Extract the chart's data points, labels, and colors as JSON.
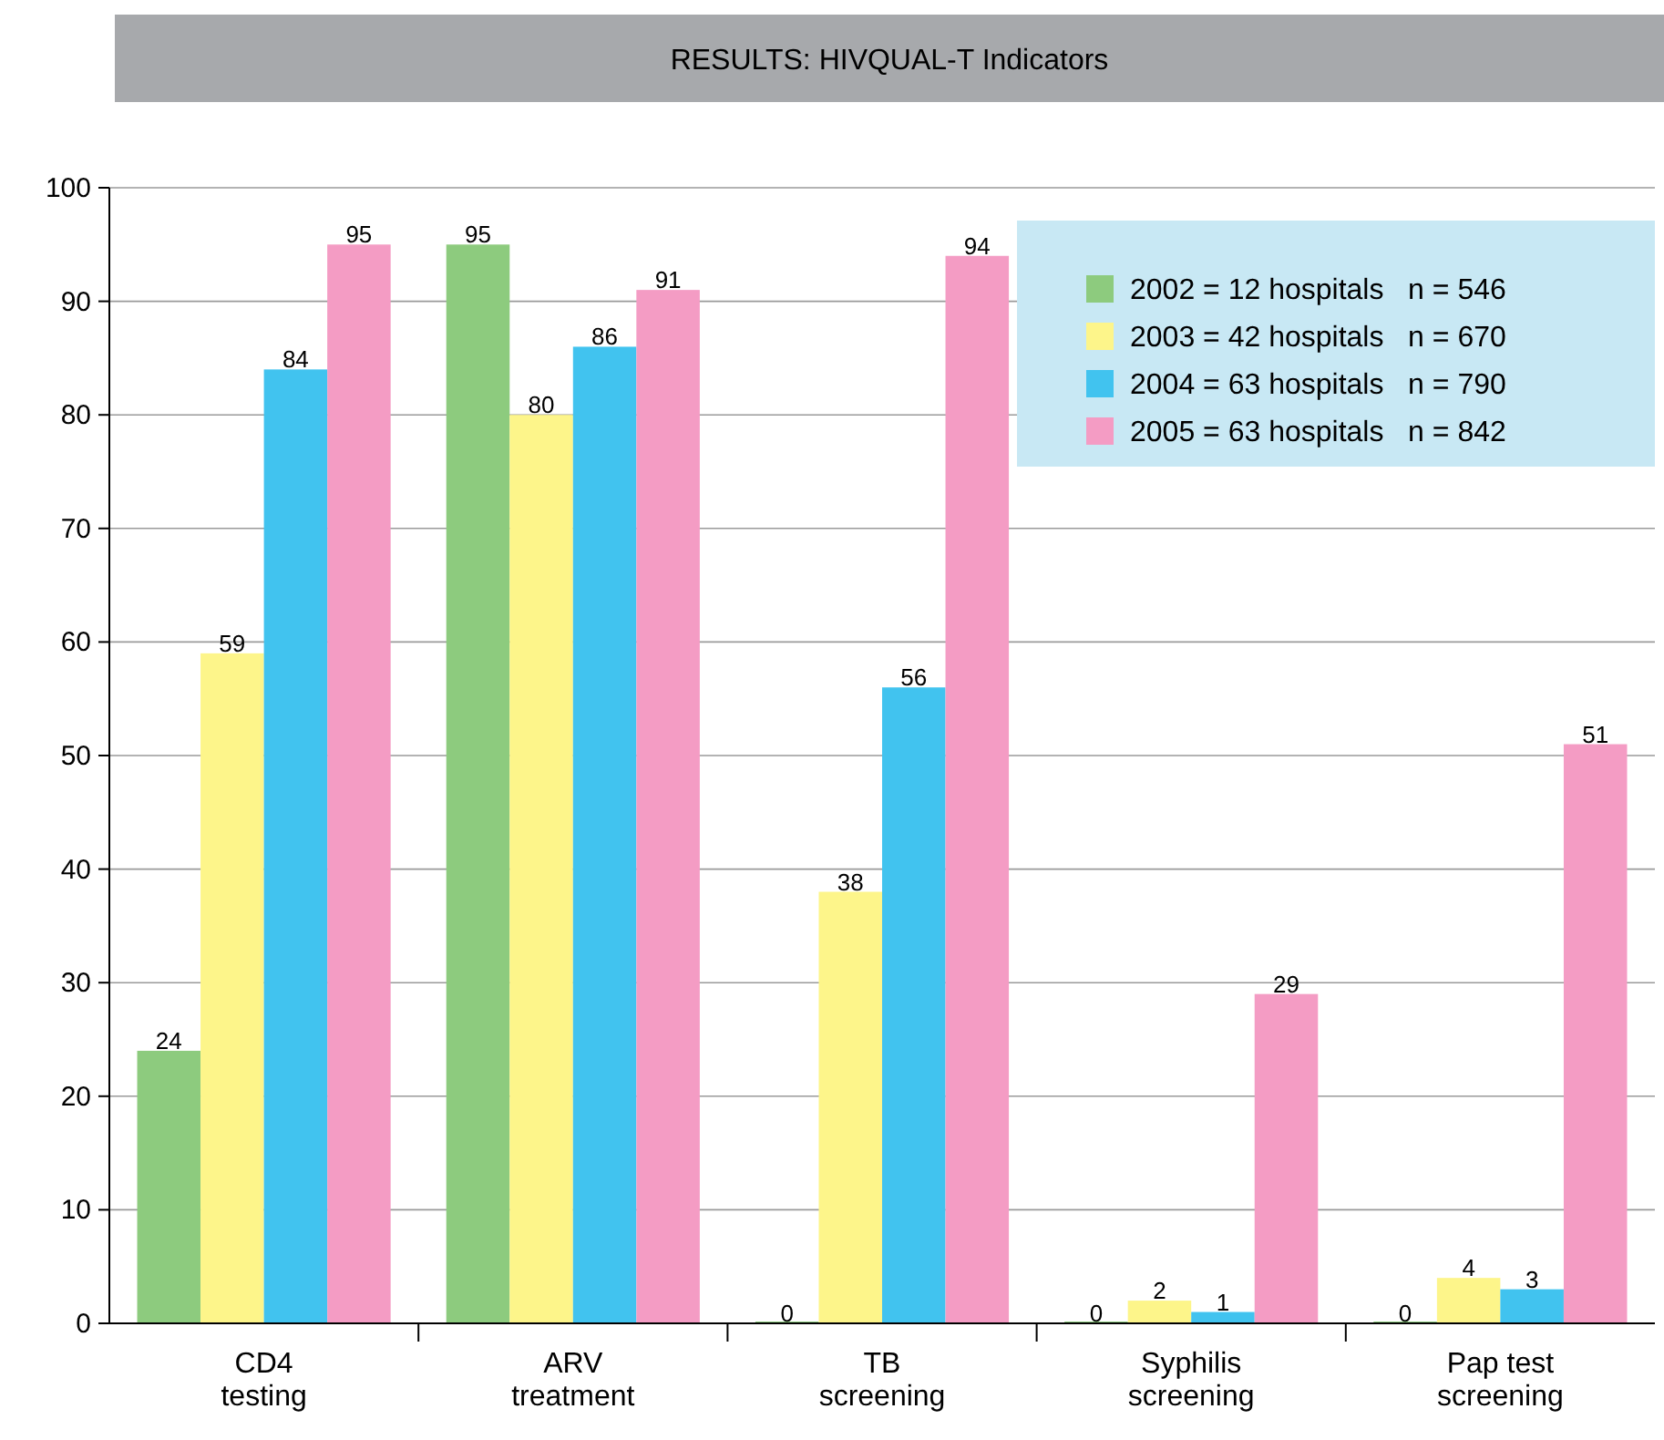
{
  "chart_data": {
    "type": "bar",
    "title": "RESULTS: HIVQUAL-T Indicators",
    "categories": [
      "CD4 testing",
      "ARV treatment",
      "TB screening",
      "Syphilis screening",
      "Pap test screening"
    ],
    "series": [
      {
        "name": "2002 = 12 hospitals   n = 546",
        "color": "#8dcb7e",
        "values": [
          24,
          95,
          0,
          0,
          0
        ]
      },
      {
        "name": "2003 = 42 hospitals   n = 670",
        "color": "#fdf58a",
        "values": [
          59,
          80,
          38,
          2,
          4
        ]
      },
      {
        "name": "2004 = 63 hospitals   n = 790",
        "color": "#41c3ef",
        "values": [
          84,
          86,
          56,
          1,
          3
        ]
      },
      {
        "name": "2005 = 63 hospitals   n = 842",
        "color": "#f49cc4",
        "values": [
          95,
          91,
          94,
          29,
          51
        ]
      }
    ],
    "ylim": [
      0,
      100
    ],
    "yticks": [
      0,
      10,
      20,
      30,
      40,
      50,
      60,
      70,
      80,
      90,
      100
    ],
    "grid": "y",
    "legend": "top right",
    "data_labels": true
  }
}
